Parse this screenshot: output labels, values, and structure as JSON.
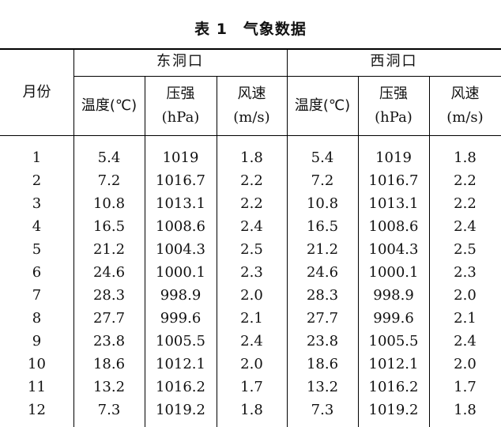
{
  "title": "表 1　气象数据",
  "header": {
    "month": "月份",
    "east_group": "东洞口",
    "west_group": "西洞口",
    "temp": "温度(℃)",
    "pressure_1": "压强",
    "pressure_2": "(hPa)",
    "wind_1": "风速",
    "wind_2": "(m/s)"
  },
  "rows": [
    [
      "1",
      "5.4",
      "1019",
      "1.8",
      "5.4",
      "1019",
      "1.8"
    ],
    [
      "2",
      "7.2",
      "1016.7",
      "2.2",
      "7.2",
      "1016.7",
      "2.2"
    ],
    [
      "3",
      "10.8",
      "1013.1",
      "2.2",
      "10.8",
      "1013.1",
      "2.2"
    ],
    [
      "4",
      "16.5",
      "1008.6",
      "2.4",
      "16.5",
      "1008.6",
      "2.4"
    ],
    [
      "5",
      "21.2",
      "1004.3",
      "2.5",
      "21.2",
      "1004.3",
      "2.5"
    ],
    [
      "6",
      "24.6",
      "1000.1",
      "2.3",
      "24.6",
      "1000.1",
      "2.3"
    ],
    [
      "7",
      "28.3",
      "998.9",
      "2.0",
      "28.3",
      "998.9",
      "2.0"
    ],
    [
      "8",
      "27.7",
      "999.6",
      "2.1",
      "27.7",
      "999.6",
      "2.1"
    ],
    [
      "9",
      "23.8",
      "1005.5",
      "2.4",
      "23.8",
      "1005.5",
      "2.4"
    ],
    [
      "10",
      "18.6",
      "1012.1",
      "2.0",
      "18.6",
      "1012.1",
      "2.0"
    ],
    [
      "11",
      "13.2",
      "1016.2",
      "1.7",
      "13.2",
      "1016.2",
      "1.7"
    ],
    [
      "12",
      "7.3",
      "1019.2",
      "1.8",
      "7.3",
      "1019.2",
      "1.8"
    ]
  ]
}
